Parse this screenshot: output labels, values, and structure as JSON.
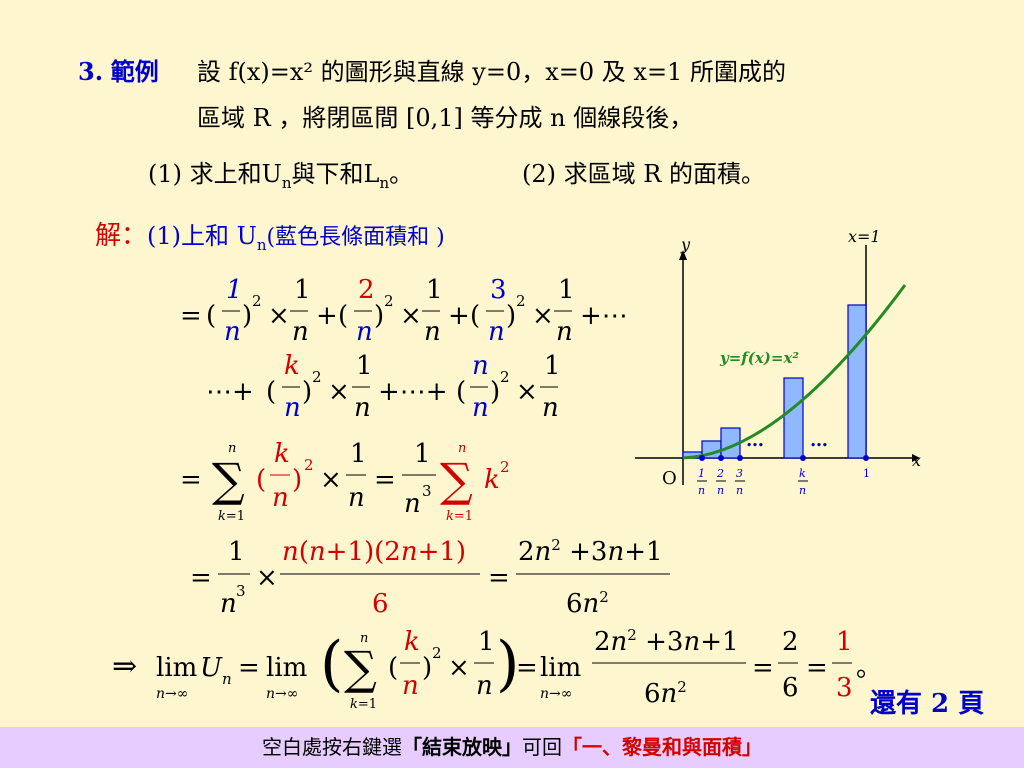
{
  "problem": {
    "number": "3.",
    "title": "範例",
    "line1": "設 f(x)=x² 的圖形與直線 y=0，x=0 及 x=1 所圍成的",
    "line2": "區域 R ，將閉區間 [0,1] 等分成 n 個線段後，",
    "q1": "(1) 求上和U",
    "q1_sub": "n",
    "q1_mid": "與下和L",
    "q1_sub2": "n",
    "q1_end": "。",
    "q2": "(2) 求區域 R 的面積。"
  },
  "solution": {
    "label": "解：",
    "part": "(1)上和 U",
    "part_sub": "n",
    "part_note": "(藍色長條面積和 )"
  },
  "graph": {
    "y_label": "y",
    "x_label": "x",
    "origin": "O",
    "x1_label": "x=1",
    "curve_label": "y=f(x)=x²",
    "dots1": "…",
    "dots2": "…",
    "tick_labels": [
      "1/n",
      "2/n",
      "3/n",
      "k/n",
      "1"
    ],
    "colors": {
      "bar_fill": "#8fb8ff",
      "bar_stroke": "#0000cc",
      "curve": "#228b22",
      "axis": "#000000"
    }
  },
  "formulas": {
    "row1": "= (1/n)² × 1/n + (2/n)² × 1/n + (3/n)² × 1/n + ⋯",
    "row2": "⋯ + (k/n)² × 1/n + ⋯ + (n/n)² × 1/n",
    "row3": "= Σ(k=1→n) (k/n)² × 1/n = 1/n³ Σ(k=1→n) k²",
    "row4": "= 1/n³ × n(n+1)(2n+1)/6 = (2n²+3n+1)/(6n²)",
    "row5": "⇒ lim(n→∞) U_n = lim(n→∞) ( Σ(k=1→n) (k/n)² × 1/n ) = lim(n→∞) (2n²+3n+1)/(6n²) = 2/6 = 1/3 。"
  },
  "nav": {
    "next": "還有 2 頁"
  },
  "footer": {
    "prefix": "空白處按右鍵選",
    "end_show": "「結束放映」",
    "middle": "可回",
    "back_link": "「一、黎曼和與面積」"
  }
}
